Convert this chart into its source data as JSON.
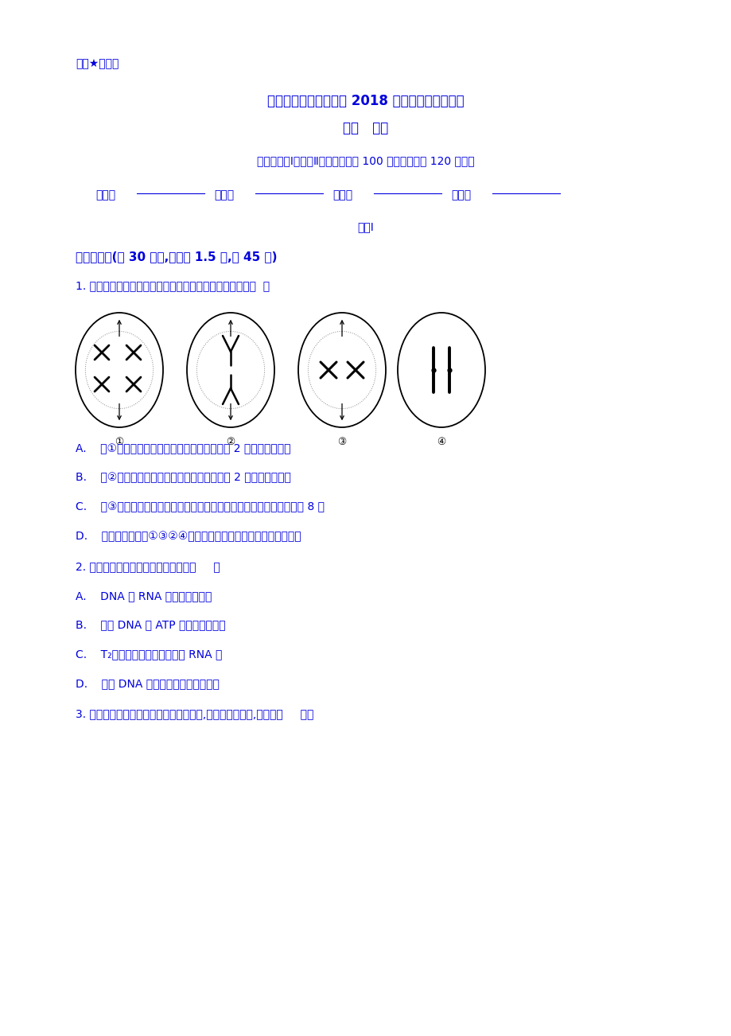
{
  "bg_color": "#ffffff",
  "text_color": "#0000dd",
  "page_width": 9.2,
  "page_height": 13.02,
  "top_label": "绝密★启用前",
  "title1": "云南省文山州丘北一中 2018 年下学期六月份月考",
  "title2": "高一   生物",
  "subtitle": "本试卷分第Ⅰ卷和第Ⅱ卷两部分，共 100 分，考试时间 120 分钟。",
  "section": "分卷Ⅰ",
  "section_header": "一、单选题(共 30 小题,每小题 1.5 分,共 45 分)",
  "q1": "1. 下列有关某生物体各细胞分裂示意图的叙述，正确的是（  ）",
  "q1_A": "A.    图①处于减数第一次分裂的中期，细胞内有 2 对姐妹染色单体",
  "q1_B": "B.    图②处于减数第二次分裂的后期，细胞内有 2 对姐妹染色单体",
  "q1_C": "C.    图③处于减数第二次分裂的中期，该生物体细胞中染色体数目恒定为 8 条",
  "q1_D": "D.    四幅图可排序为①③②④，可出现在该生物体精子的形成过程中",
  "q2": "2. 下列关于核酸的叙述中，正确的是（     ）",
  "q2_A": "A.    DNA 和 RNA 中的五碳糖相同",
  "q2_B": "B.    组成 DNA 与 ATP 的元素种类不同",
  "q2_C": "C.    T₂噬菌体的遗传信息储存在 RNA 中",
  "q2_D": "D.    双链 DNA 分子中嘌呤数等于嘧啶数",
  "q3": "3. 马和豚鼠体细胞具有相同数目的染色体,但性状差异很大,原因是（     ）。"
}
